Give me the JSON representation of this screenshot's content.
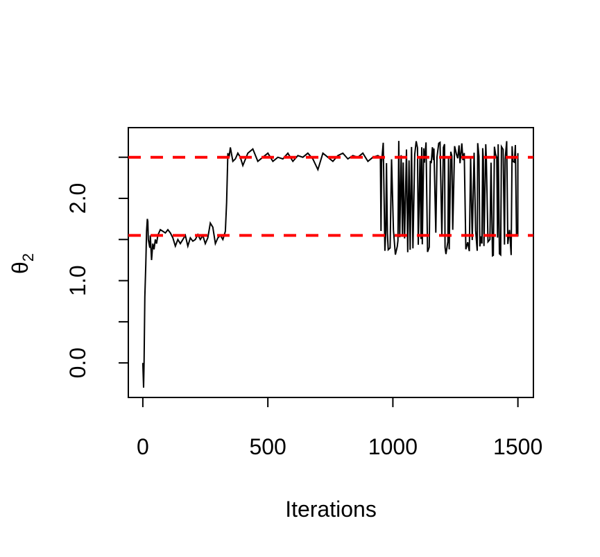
{
  "chart_data": {
    "type": "line",
    "title": "",
    "xlabel": "Iterations",
    "ylabel": "θ",
    "ylabel_subscript": "2",
    "xlim": [
      -58,
      1562
    ],
    "ylim": [
      -0.42,
      2.86
    ],
    "x_ticks": [
      0,
      500,
      1000,
      1500
    ],
    "x_tick_labels": [
      "0",
      "500",
      "1000",
      "1500"
    ],
    "y_ticks": [
      0.0,
      0.5,
      1.0,
      1.5,
      2.0,
      2.5
    ],
    "y_tick_labels": [
      "0.0",
      "",
      "1.0",
      "",
      "2.0",
      ""
    ],
    "grid": false,
    "reference_lines": [
      {
        "y": 2.5,
        "color": "#ff0000",
        "style": "dashed"
      },
      {
        "y": 1.55,
        "color": "#ff0000",
        "style": "dashed"
      }
    ],
    "series": [
      {
        "color": "#000000",
        "x": [
          0,
          3,
          5,
          8,
          12,
          15,
          18,
          20,
          22,
          25,
          28,
          30,
          35,
          40,
          45,
          50,
          55,
          60,
          70,
          80,
          90,
          100,
          110,
          120,
          130,
          140,
          150,
          160,
          170,
          180,
          190,
          200,
          210,
          220,
          230,
          240,
          250,
          260,
          270,
          280,
          290,
          300,
          310,
          320,
          330,
          335,
          340,
          345,
          350,
          360,
          370,
          380,
          390,
          400,
          420,
          440,
          460,
          480,
          500,
          520,
          540,
          560,
          580,
          600,
          620,
          640,
          660,
          680,
          700,
          720,
          740,
          760,
          780,
          800,
          820,
          840,
          860,
          880,
          900,
          920,
          940,
          950
        ],
        "values": [
          0.0,
          -0.3,
          0.0,
          0.8,
          1.2,
          1.6,
          1.75,
          1.72,
          1.5,
          1.45,
          1.4,
          1.55,
          1.25,
          1.45,
          1.38,
          1.5,
          1.45,
          1.55,
          1.62,
          1.6,
          1.58,
          1.62,
          1.58,
          1.52,
          1.42,
          1.5,
          1.45,
          1.5,
          1.55,
          1.42,
          1.52,
          1.48,
          1.5,
          1.56,
          1.5,
          1.55,
          1.45,
          1.52,
          1.7,
          1.65,
          1.45,
          1.52,
          1.55,
          1.5,
          1.6,
          1.95,
          2.55,
          2.5,
          2.62,
          2.45,
          2.48,
          2.55,
          2.5,
          2.4,
          2.55,
          2.6,
          2.45,
          2.5,
          2.55,
          2.45,
          2.5,
          2.48,
          2.55,
          2.45,
          2.52,
          2.5,
          2.55,
          2.48,
          2.35,
          2.55,
          2.5,
          2.45,
          2.52,
          2.55,
          2.48,
          2.52,
          2.5,
          2.55,
          2.45,
          2.5,
          2.52,
          2.5
        ]
      }
    ],
    "switching_region": {
      "x_start": 950,
      "x_end": 1500,
      "upper_mode_range": [
        2.42,
        2.7
      ],
      "lower_mode_range": [
        1.3,
        1.62
      ]
    }
  }
}
